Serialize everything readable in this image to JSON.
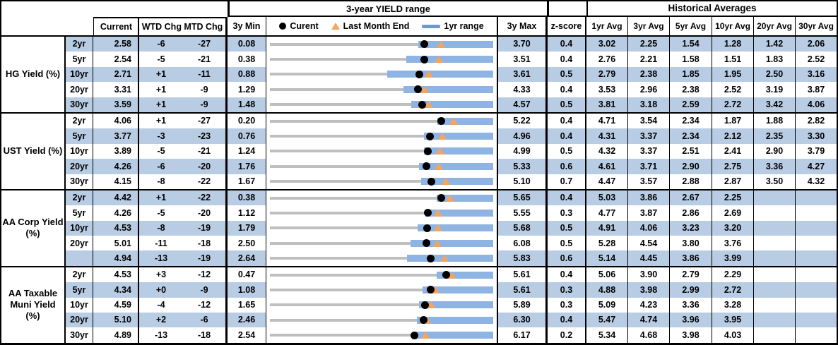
{
  "header": {
    "yield_range_title": "3-year YIELD range",
    "historical_title": "Historical Averages",
    "col_current": "Current",
    "col_wtd": "WTD Chg",
    "col_mtd": "MTD Chg",
    "col_3y_min": "3y Min",
    "col_3y_max": "3y Max",
    "col_zscore": "z-score",
    "avg_cols": [
      "1yr Avg",
      "3yr Avg",
      "5yr Avg",
      "10yr Avg",
      "20yr Avg",
      "30yr Avg"
    ],
    "legend": {
      "current_label": "Curent",
      "last_month_label": "Last Month End",
      "range_label": "1yr range"
    }
  },
  "colors": {
    "row_stripe": "#b8cce4",
    "range_bar": "#8eb4e3",
    "range_track": "#bfbfbf",
    "marker_current": "#000000",
    "marker_last_month": "#f6a45c",
    "legend_dash": "#6d9ad0",
    "border": "#000000"
  },
  "chart_data": {
    "type": "table",
    "title": "3-year YIELD range",
    "notes": "Each row embeds a range chart: gray track spans 3y Min to 3y Max; blue bar is 1yr range (low estimated from pixels, high = 3y Max); black dot = Current; orange triangle = Last Month End (Current - MTD Chg bps).",
    "columns": [
      "Current",
      "WTD Chg",
      "MTD Chg",
      "3y Min",
      "3y Max",
      "z-score",
      "1yr Avg",
      "3yr Avg",
      "5yr Avg",
      "10yr Avg",
      "20yr Avg",
      "30yr Avg"
    ],
    "groups": [
      {
        "label": "HG Yield (%)",
        "rows": [
          {
            "tenor": "2yr",
            "current": "2.58",
            "wtd": "-6",
            "mtd": "-27",
            "min": "0.08",
            "max": "3.70",
            "z": "0.4",
            "avgs": [
              "3.02",
              "2.25",
              "1.54",
              "1.28",
              "1.42",
              "2.06"
            ],
            "yr1_low": 2.48
          },
          {
            "tenor": "5yr",
            "current": "2.54",
            "wtd": "-5",
            "mtd": "-21",
            "min": "0.38",
            "max": "3.51",
            "z": "0.4",
            "avgs": [
              "2.76",
              "2.21",
              "1.58",
              "1.51",
              "1.83",
              "2.52"
            ],
            "yr1_low": 2.29
          },
          {
            "tenor": "10yr",
            "current": "2.71",
            "wtd": "+1",
            "mtd": "-11",
            "min": "0.88",
            "max": "3.61",
            "z": "0.5",
            "avgs": [
              "2.79",
              "2.38",
              "1.85",
              "1.95",
              "2.50",
              "3.16"
            ],
            "yr1_low": 2.31
          },
          {
            "tenor": "20yr",
            "current": "3.31",
            "wtd": "+1",
            "mtd": "-9",
            "min": "1.29",
            "max": "4.33",
            "z": "0.4",
            "avgs": [
              "3.53",
              "2.96",
              "2.38",
              "2.52",
              "3.19",
              "3.87"
            ],
            "yr1_low": 3.11
          },
          {
            "tenor": "30yr",
            "current": "3.59",
            "wtd": "+1",
            "mtd": "-9",
            "min": "1.48",
            "max": "4.57",
            "z": "0.5",
            "avgs": [
              "3.81",
              "3.18",
              "2.59",
              "2.72",
              "3.42",
              "4.06"
            ],
            "yr1_low": 3.44
          }
        ]
      },
      {
        "label": "UST Yield (%)",
        "rows": [
          {
            "tenor": "2yr",
            "current": "4.06",
            "wtd": "+1",
            "mtd": "-27",
            "min": "0.20",
            "max": "5.22",
            "z": "0.4",
            "avgs": [
              "4.71",
              "3.54",
              "2.34",
              "1.87",
              "1.88",
              "2.82"
            ],
            "yr1_low": 3.96
          },
          {
            "tenor": "5yr",
            "current": "3.77",
            "wtd": "-3",
            "mtd": "-23",
            "min": "0.76",
            "max": "4.96",
            "z": "0.4",
            "avgs": [
              "4.31",
              "3.37",
              "2.34",
              "2.12",
              "2.35",
              "3.30"
            ],
            "yr1_low": 3.66
          },
          {
            "tenor": "10yr",
            "current": "3.89",
            "wtd": "-5",
            "mtd": "-21",
            "min": "1.24",
            "max": "4.99",
            "z": "0.5",
            "avgs": [
              "4.32",
              "3.37",
              "2.51",
              "2.41",
              "2.90",
              "3.79"
            ],
            "yr1_low": 3.83
          },
          {
            "tenor": "20yr",
            "current": "4.26",
            "wtd": "-6",
            "mtd": "-20",
            "min": "1.76",
            "max": "5.33",
            "z": "0.6",
            "avgs": [
              "4.61",
              "3.71",
              "2.90",
              "2.75",
              "3.36",
              "4.27"
            ],
            "yr1_low": 4.14
          },
          {
            "tenor": "30yr",
            "current": "4.15",
            "wtd": "-8",
            "mtd": "-22",
            "min": "1.67",
            "max": "5.10",
            "z": "0.7",
            "avgs": [
              "4.47",
              "3.57",
              "2.88",
              "2.87",
              "3.50",
              "4.32"
            ],
            "yr1_low": 3.99
          }
        ]
      },
      {
        "label": "AA Corp Yield\n(%)",
        "rows": [
          {
            "tenor": "2yr",
            "current": "4.42",
            "wtd": "+1",
            "mtd": "-22",
            "min": "0.38",
            "max": "5.65",
            "z": "0.4",
            "avgs": [
              "5.03",
              "3.86",
              "2.67",
              "2.25",
              "",
              ""
            ],
            "yr1_low": 4.31
          },
          {
            "tenor": "5yr",
            "current": "4.26",
            "wtd": "-5",
            "mtd": "-20",
            "min": "1.12",
            "max": "5.55",
            "z": "0.3",
            "avgs": [
              "4.77",
              "3.87",
              "2.86",
              "2.69",
              "",
              ""
            ],
            "yr1_low": 4.21
          },
          {
            "tenor": "10yr",
            "current": "4.53",
            "wtd": "-8",
            "mtd": "-19",
            "min": "1.79",
            "max": "5.68",
            "z": "0.5",
            "avgs": [
              "4.91",
              "4.06",
              "3.23",
              "3.20",
              "",
              ""
            ],
            "yr1_low": 4.36
          },
          {
            "tenor": "20yr",
            "current": "5.01",
            "wtd": "-11",
            "mtd": "-18",
            "min": "2.50",
            "max": "6.08",
            "z": "0.5",
            "avgs": [
              "5.28",
              "4.54",
              "3.80",
              "3.76",
              "",
              ""
            ],
            "yr1_low": 4.76
          },
          {
            "tenor": "",
            "current": "4.94",
            "wtd": "-13",
            "mtd": "-19",
            "min": "2.64",
            "max": "5.83",
            "z": "0.6",
            "avgs": [
              "5.14",
              "4.45",
              "3.86",
              "3.99",
              "",
              ""
            ],
            "yr1_low": 4.6
          }
        ]
      },
      {
        "label": "AA Taxable\nMuni Yield\n(%)",
        "rows": [
          {
            "tenor": "2yr",
            "current": "4.53",
            "wtd": "+3",
            "mtd": "-12",
            "min": "0.47",
            "max": "5.61",
            "z": "0.4",
            "avgs": [
              "5.06",
              "3.90",
              "2.79",
              "2.29",
              "",
              ""
            ],
            "yr1_low": 4.31
          },
          {
            "tenor": "5yr",
            "current": "4.34",
            "wtd": "+0",
            "mtd": "-9",
            "min": "1.08",
            "max": "5.61",
            "z": "0.3",
            "avgs": [
              "4.88",
              "3.98",
              "2.99",
              "2.72",
              "",
              ""
            ],
            "yr1_low": 4.17
          },
          {
            "tenor": "10yr",
            "current": "4.59",
            "wtd": "-4",
            "mtd": "-12",
            "min": "1.65",
            "max": "5.89",
            "z": "0.3",
            "avgs": [
              "5.09",
              "4.23",
              "3.36",
              "3.28",
              "",
              ""
            ],
            "yr1_low": 4.48
          },
          {
            "tenor": "20yr",
            "current": "5.10",
            "wtd": "+2",
            "mtd": "-6",
            "min": "2.46",
            "max": "6.30",
            "z": "0.4",
            "avgs": [
              "5.47",
              "4.74",
              "3.96",
              "3.95",
              "",
              ""
            ],
            "yr1_low": 4.99
          },
          {
            "tenor": "30yr",
            "current": "4.89",
            "wtd": "-13",
            "mtd": "-18",
            "min": "2.54",
            "max": "6.17",
            "z": "0.2",
            "avgs": [
              "5.34",
              "4.68",
              "3.98",
              "4.03",
              "",
              ""
            ],
            "yr1_low": 4.86
          }
        ]
      }
    ]
  }
}
